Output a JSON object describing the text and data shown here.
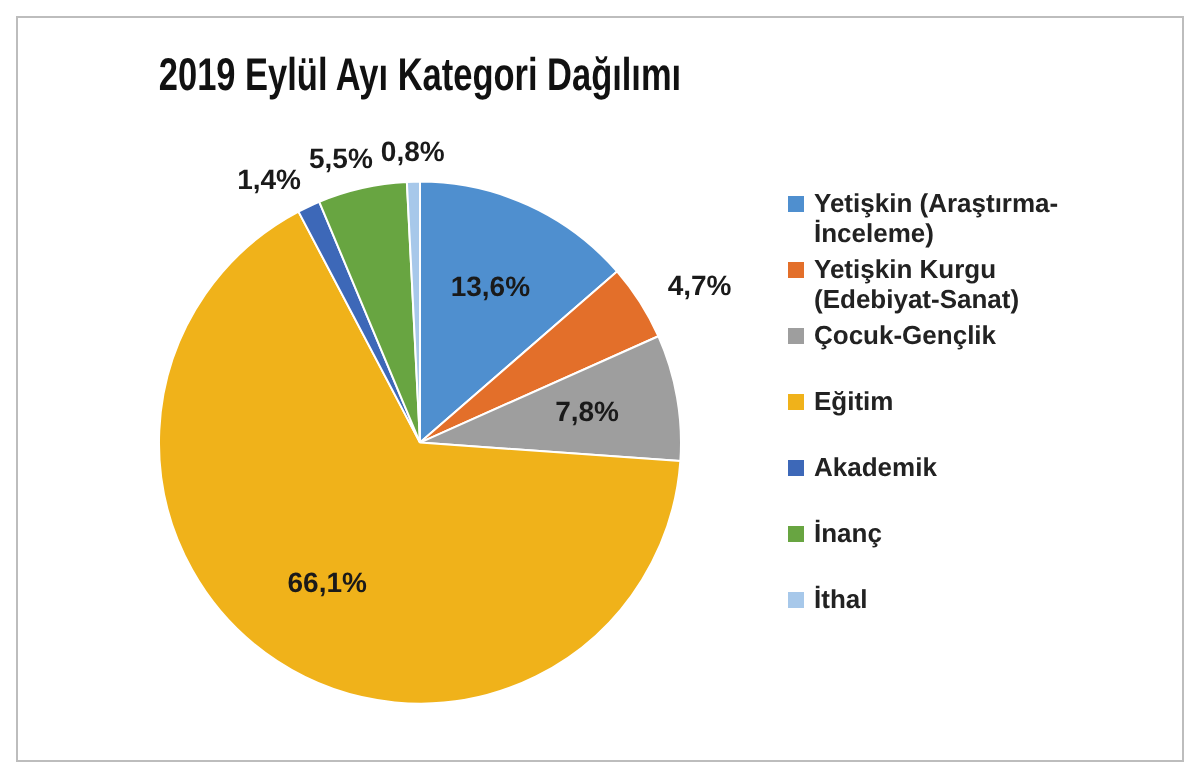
{
  "chart_data": {
    "type": "pie",
    "title": "2019 Eylül Ayı Kategori Dağılımı",
    "categories": [
      "Yetişkin (Araştırma-İnceleme)",
      "Yetişkin Kurgu (Edebiyat-Sanat)",
      "Çocuk-Gençlik",
      "Eğitim",
      "Akademik",
      "İnanç",
      "İthal"
    ],
    "values": [
      13.6,
      4.7,
      7.8,
      66.1,
      1.4,
      5.5,
      0.8
    ],
    "colors": [
      "#4f8fcf",
      "#e36f2a",
      "#9e9e9e",
      "#f0b21a",
      "#3d68b8",
      "#68a541",
      "#a7c8ea"
    ],
    "value_labels": [
      "13,6%",
      "4,7%",
      "7,8%",
      "66,1%",
      "1,4%",
      "5,5%",
      "0,8%"
    ],
    "legend": "right"
  }
}
